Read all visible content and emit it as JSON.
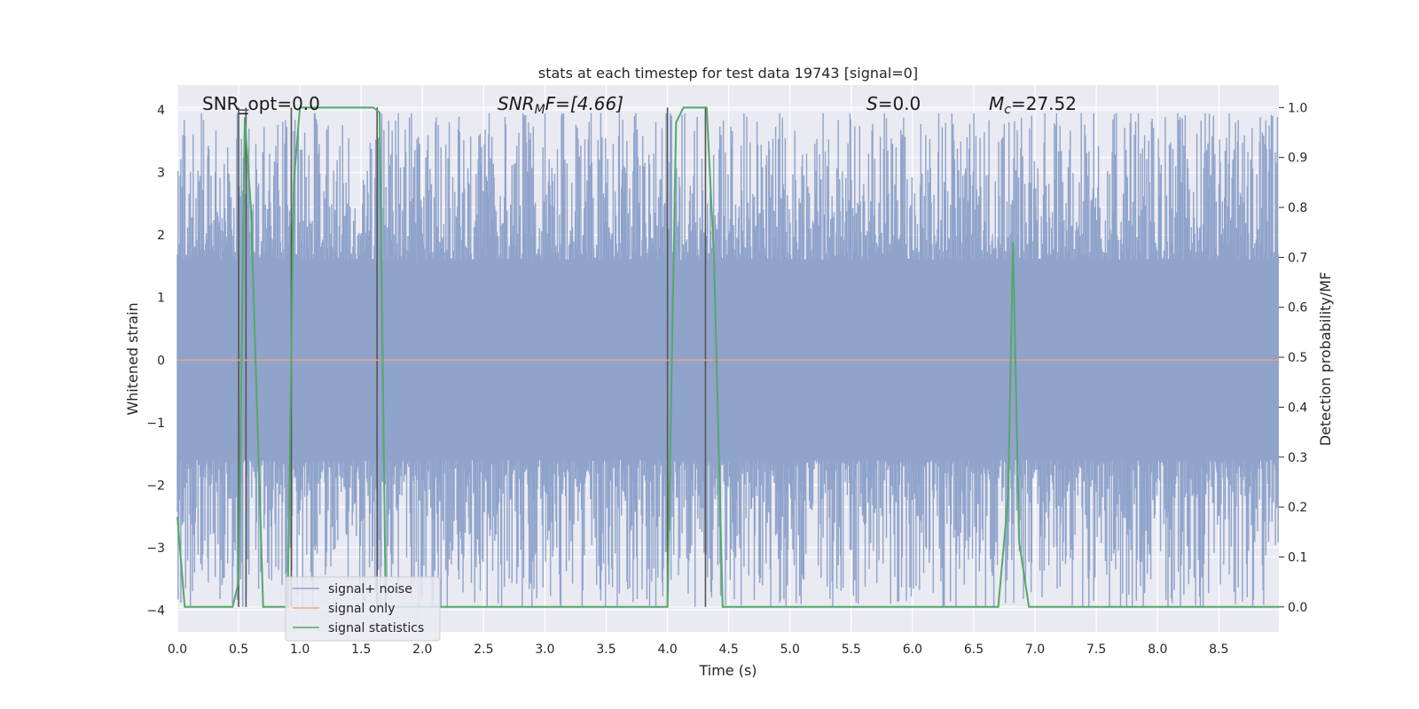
{
  "chart_data": {
    "type": "line",
    "title": "stats at each timestep for test data 19743 [signal=0]",
    "xlabel": "Time (s)",
    "ylabel": "Whitened strain",
    "y2label": "Detection probability/MF",
    "xlim": [
      0.0,
      8.99
    ],
    "ylim": [
      -4.35,
      4.4
    ],
    "y2lim": [
      -0.05,
      1.045
    ],
    "x_ticks": [
      "0.0",
      "0.5",
      "1.0",
      "1.5",
      "2.0",
      "2.5",
      "3.0",
      "3.5",
      "4.0",
      "4.5",
      "5.0",
      "5.5",
      "6.0",
      "6.5",
      "7.0",
      "7.5",
      "8.0",
      "8.5"
    ],
    "y_ticks": [
      "−4",
      "−3",
      "−2",
      "−1",
      "0",
      "1",
      "2",
      "3",
      "4"
    ],
    "y2_ticks": [
      "0.0",
      "0.1",
      "0.2",
      "0.3",
      "0.4",
      "0.5",
      "0.6",
      "0.7",
      "0.8",
      "0.9",
      "1.0"
    ],
    "grid": true,
    "legend_position": "lower-left",
    "annotations": {
      "snr_opt": "SNR_opt=0.0",
      "snr_mf_main": "SNR",
      "snr_mf_sub": "M",
      "snr_mf_tail": "F=[4.66]",
      "s_main": "S",
      "s_tail": "=0.0",
      "mc_main": "M",
      "mc_sub": "c",
      "mc_tail": "=27.52"
    },
    "series": [
      {
        "name": "signal+ noise",
        "color": "#8fa3cb",
        "typical_envelope": [
          -1.6,
          1.6
        ],
        "extreme_range": [
          -3.95,
          3.95
        ]
      },
      {
        "name": "signal only",
        "color": "#e6a587",
        "x": [
          0.0,
          8.99
        ],
        "y": [
          0.0,
          0.0
        ]
      },
      {
        "name": "signal statistics",
        "color": "#55a868",
        "axis": "right",
        "x": [
          0.0,
          0.06,
          0.1,
          0.45,
          0.5,
          0.55,
          0.6,
          0.7,
          0.9,
          0.95,
          1.0,
          1.6,
          1.65,
          1.7,
          3.95,
          4.0,
          4.07,
          4.13,
          4.25,
          4.32,
          4.38,
          4.45,
          4.5,
          6.7,
          6.78,
          6.82,
          6.87,
          6.95,
          7.0,
          8.99
        ],
        "y": [
          0.18,
          0.0,
          0.0,
          0.0,
          0.05,
          0.98,
          0.8,
          0.0,
          0.0,
          0.85,
          1.0,
          1.0,
          0.99,
          0.0,
          0.0,
          0.0,
          0.97,
          1.0,
          1.0,
          1.0,
          0.7,
          0.0,
          0.0,
          0.0,
          0.22,
          0.73,
          0.13,
          0.0,
          0.0,
          0.0
        ]
      }
    ],
    "vertical_markers_x": [
      0.5,
      0.56,
      0.93,
      1.63,
      4.0,
      4.31
    ]
  },
  "legend": {
    "items": [
      {
        "label": "signal+ noise",
        "color": "#8fa3cb"
      },
      {
        "label": "signal only",
        "color": "#e6a587"
      },
      {
        "label": "signal statistics",
        "color": "#55a868"
      }
    ]
  },
  "colors": {
    "plot_background": "#eaeaf2",
    "grid": "#ffffff",
    "marker": "#555555"
  }
}
